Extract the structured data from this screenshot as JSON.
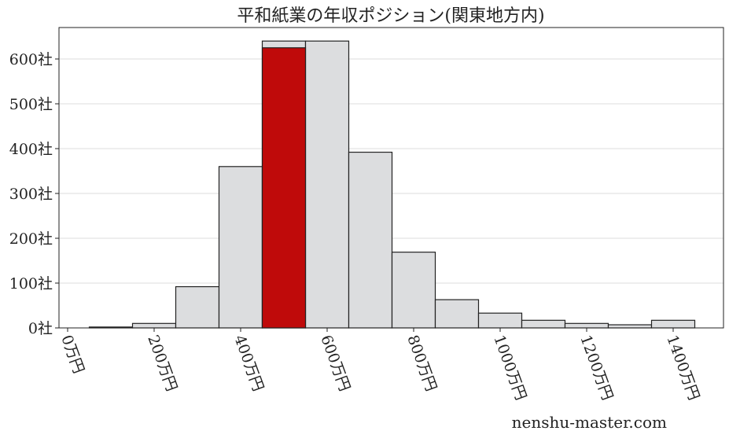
{
  "chart_data": {
    "type": "bar",
    "title": "平和紙業の年収ポジション(関東地方内)",
    "bins": [
      [
        50,
        150
      ],
      [
        150,
        250
      ],
      [
        250,
        350
      ],
      [
        350,
        450
      ],
      [
        450,
        550
      ],
      [
        550,
        650
      ],
      [
        650,
        750
      ],
      [
        750,
        850
      ],
      [
        850,
        950
      ],
      [
        950,
        1050
      ],
      [
        1050,
        1150
      ],
      [
        1150,
        1250
      ],
      [
        1250,
        1350
      ],
      [
        1350,
        1450
      ]
    ],
    "values": [
      2,
      10,
      92,
      360,
      640,
      640,
      392,
      169,
      63,
      33,
      17,
      10,
      7,
      17
    ],
    "highlight": {
      "bin_index": 4,
      "value": 625,
      "color": "#bf0a0a"
    },
    "bar_color": "#dcdddf",
    "xlim": [
      -20,
      1520
    ],
    "ylim": [
      0,
      670
    ],
    "yticks": [
      0,
      100,
      200,
      300,
      400,
      500,
      600
    ],
    "ytick_labels": [
      "0社",
      "100社",
      "200社",
      "300社",
      "400社",
      "500社",
      "600社"
    ],
    "xticks": [
      0,
      200,
      400,
      600,
      800,
      1000,
      1200,
      1400
    ],
    "xtick_labels": [
      "0万円",
      "200万円",
      "400万円",
      "600万円",
      "800万円",
      "1000万円",
      "1200万円",
      "1400万円"
    ],
    "grid": "horizontal"
  },
  "watermark": "nenshu-master.com"
}
